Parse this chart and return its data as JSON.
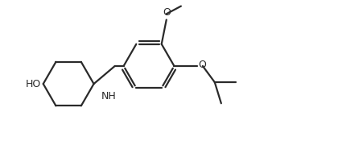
{
  "background_color": "#ffffff",
  "line_color": "#2a2a2a",
  "line_width": 1.6,
  "text_color": "#2a2a2a",
  "font_size": 9.0,
  "xlim": [
    -3.8,
    5.8
  ],
  "ylim": [
    -2.0,
    2.4
  ]
}
